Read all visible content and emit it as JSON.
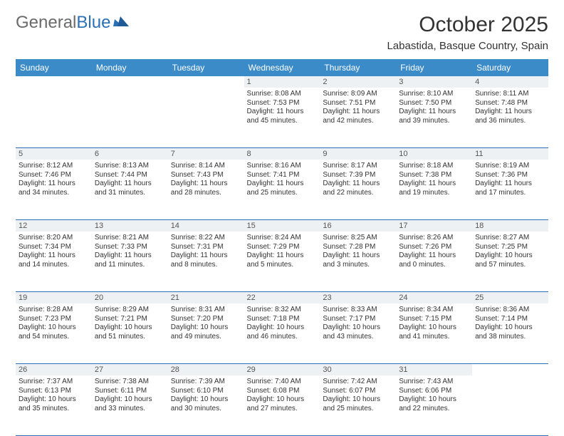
{
  "brand": {
    "word1": "General",
    "word2": "Blue"
  },
  "title": "October 2025",
  "location": "Labastida, Basque Country, Spain",
  "colors": {
    "header_bg": "#3b8bc9",
    "header_text": "#ffffff",
    "daynum_bg": "#eef1f3",
    "border": "#2b6fb5",
    "brand_blue": "#2b6fb5",
    "brand_gray": "#6b6b6b",
    "text": "#333333",
    "background": "#ffffff"
  },
  "day_headers": [
    "Sunday",
    "Monday",
    "Tuesday",
    "Wednesday",
    "Thursday",
    "Friday",
    "Saturday"
  ],
  "weeks": [
    [
      {
        "day": "",
        "sunrise": "",
        "sunset": "",
        "daylight1": "",
        "daylight2": ""
      },
      {
        "day": "",
        "sunrise": "",
        "sunset": "",
        "daylight1": "",
        "daylight2": ""
      },
      {
        "day": "",
        "sunrise": "",
        "sunset": "",
        "daylight1": "",
        "daylight2": ""
      },
      {
        "day": "1",
        "sunrise": "Sunrise: 8:08 AM",
        "sunset": "Sunset: 7:53 PM",
        "daylight1": "Daylight: 11 hours",
        "daylight2": "and 45 minutes."
      },
      {
        "day": "2",
        "sunrise": "Sunrise: 8:09 AM",
        "sunset": "Sunset: 7:51 PM",
        "daylight1": "Daylight: 11 hours",
        "daylight2": "and 42 minutes."
      },
      {
        "day": "3",
        "sunrise": "Sunrise: 8:10 AM",
        "sunset": "Sunset: 7:50 PM",
        "daylight1": "Daylight: 11 hours",
        "daylight2": "and 39 minutes."
      },
      {
        "day": "4",
        "sunrise": "Sunrise: 8:11 AM",
        "sunset": "Sunset: 7:48 PM",
        "daylight1": "Daylight: 11 hours",
        "daylight2": "and 36 minutes."
      }
    ],
    [
      {
        "day": "5",
        "sunrise": "Sunrise: 8:12 AM",
        "sunset": "Sunset: 7:46 PM",
        "daylight1": "Daylight: 11 hours",
        "daylight2": "and 34 minutes."
      },
      {
        "day": "6",
        "sunrise": "Sunrise: 8:13 AM",
        "sunset": "Sunset: 7:44 PM",
        "daylight1": "Daylight: 11 hours",
        "daylight2": "and 31 minutes."
      },
      {
        "day": "7",
        "sunrise": "Sunrise: 8:14 AM",
        "sunset": "Sunset: 7:43 PM",
        "daylight1": "Daylight: 11 hours",
        "daylight2": "and 28 minutes."
      },
      {
        "day": "8",
        "sunrise": "Sunrise: 8:16 AM",
        "sunset": "Sunset: 7:41 PM",
        "daylight1": "Daylight: 11 hours",
        "daylight2": "and 25 minutes."
      },
      {
        "day": "9",
        "sunrise": "Sunrise: 8:17 AM",
        "sunset": "Sunset: 7:39 PM",
        "daylight1": "Daylight: 11 hours",
        "daylight2": "and 22 minutes."
      },
      {
        "day": "10",
        "sunrise": "Sunrise: 8:18 AM",
        "sunset": "Sunset: 7:38 PM",
        "daylight1": "Daylight: 11 hours",
        "daylight2": "and 19 minutes."
      },
      {
        "day": "11",
        "sunrise": "Sunrise: 8:19 AM",
        "sunset": "Sunset: 7:36 PM",
        "daylight1": "Daylight: 11 hours",
        "daylight2": "and 17 minutes."
      }
    ],
    [
      {
        "day": "12",
        "sunrise": "Sunrise: 8:20 AM",
        "sunset": "Sunset: 7:34 PM",
        "daylight1": "Daylight: 11 hours",
        "daylight2": "and 14 minutes."
      },
      {
        "day": "13",
        "sunrise": "Sunrise: 8:21 AM",
        "sunset": "Sunset: 7:33 PM",
        "daylight1": "Daylight: 11 hours",
        "daylight2": "and 11 minutes."
      },
      {
        "day": "14",
        "sunrise": "Sunrise: 8:22 AM",
        "sunset": "Sunset: 7:31 PM",
        "daylight1": "Daylight: 11 hours",
        "daylight2": "and 8 minutes."
      },
      {
        "day": "15",
        "sunrise": "Sunrise: 8:24 AM",
        "sunset": "Sunset: 7:29 PM",
        "daylight1": "Daylight: 11 hours",
        "daylight2": "and 5 minutes."
      },
      {
        "day": "16",
        "sunrise": "Sunrise: 8:25 AM",
        "sunset": "Sunset: 7:28 PM",
        "daylight1": "Daylight: 11 hours",
        "daylight2": "and 3 minutes."
      },
      {
        "day": "17",
        "sunrise": "Sunrise: 8:26 AM",
        "sunset": "Sunset: 7:26 PM",
        "daylight1": "Daylight: 11 hours",
        "daylight2": "and 0 minutes."
      },
      {
        "day": "18",
        "sunrise": "Sunrise: 8:27 AM",
        "sunset": "Sunset: 7:25 PM",
        "daylight1": "Daylight: 10 hours",
        "daylight2": "and 57 minutes."
      }
    ],
    [
      {
        "day": "19",
        "sunrise": "Sunrise: 8:28 AM",
        "sunset": "Sunset: 7:23 PM",
        "daylight1": "Daylight: 10 hours",
        "daylight2": "and 54 minutes."
      },
      {
        "day": "20",
        "sunrise": "Sunrise: 8:29 AM",
        "sunset": "Sunset: 7:21 PM",
        "daylight1": "Daylight: 10 hours",
        "daylight2": "and 51 minutes."
      },
      {
        "day": "21",
        "sunrise": "Sunrise: 8:31 AM",
        "sunset": "Sunset: 7:20 PM",
        "daylight1": "Daylight: 10 hours",
        "daylight2": "and 49 minutes."
      },
      {
        "day": "22",
        "sunrise": "Sunrise: 8:32 AM",
        "sunset": "Sunset: 7:18 PM",
        "daylight1": "Daylight: 10 hours",
        "daylight2": "and 46 minutes."
      },
      {
        "day": "23",
        "sunrise": "Sunrise: 8:33 AM",
        "sunset": "Sunset: 7:17 PM",
        "daylight1": "Daylight: 10 hours",
        "daylight2": "and 43 minutes."
      },
      {
        "day": "24",
        "sunrise": "Sunrise: 8:34 AM",
        "sunset": "Sunset: 7:15 PM",
        "daylight1": "Daylight: 10 hours",
        "daylight2": "and 41 minutes."
      },
      {
        "day": "25",
        "sunrise": "Sunrise: 8:36 AM",
        "sunset": "Sunset: 7:14 PM",
        "daylight1": "Daylight: 10 hours",
        "daylight2": "and 38 minutes."
      }
    ],
    [
      {
        "day": "26",
        "sunrise": "Sunrise: 7:37 AM",
        "sunset": "Sunset: 6:13 PM",
        "daylight1": "Daylight: 10 hours",
        "daylight2": "and 35 minutes."
      },
      {
        "day": "27",
        "sunrise": "Sunrise: 7:38 AM",
        "sunset": "Sunset: 6:11 PM",
        "daylight1": "Daylight: 10 hours",
        "daylight2": "and 33 minutes."
      },
      {
        "day": "28",
        "sunrise": "Sunrise: 7:39 AM",
        "sunset": "Sunset: 6:10 PM",
        "daylight1": "Daylight: 10 hours",
        "daylight2": "and 30 minutes."
      },
      {
        "day": "29",
        "sunrise": "Sunrise: 7:40 AM",
        "sunset": "Sunset: 6:08 PM",
        "daylight1": "Daylight: 10 hours",
        "daylight2": "and 27 minutes."
      },
      {
        "day": "30",
        "sunrise": "Sunrise: 7:42 AM",
        "sunset": "Sunset: 6:07 PM",
        "daylight1": "Daylight: 10 hours",
        "daylight2": "and 25 minutes."
      },
      {
        "day": "31",
        "sunrise": "Sunrise: 7:43 AM",
        "sunset": "Sunset: 6:06 PM",
        "daylight1": "Daylight: 10 hours",
        "daylight2": "and 22 minutes."
      },
      {
        "day": "",
        "sunrise": "",
        "sunset": "",
        "daylight1": "",
        "daylight2": ""
      }
    ]
  ]
}
